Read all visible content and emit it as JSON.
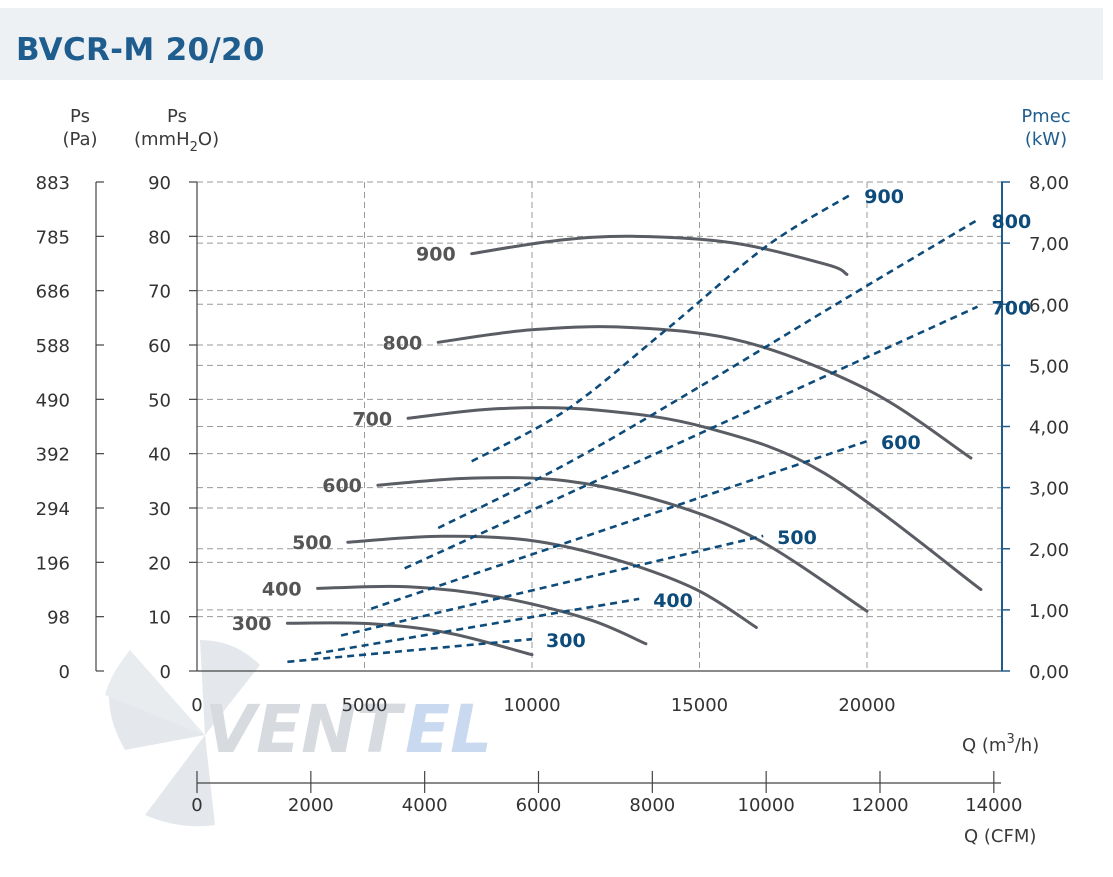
{
  "header": {
    "title": "BVCR-M 20/20"
  },
  "watermark": {
    "brand_a": "VENT",
    "brand_b": "EL"
  },
  "chart_data": {
    "type": "line",
    "title": "BVCR-M 20/20",
    "x_axis": {
      "label": "Q (m3/h)",
      "label_main": "Q (m",
      "label_sup": "3",
      "label_end": "/h)",
      "range": [
        0,
        24000
      ],
      "ticks": [
        0,
        5000,
        10000,
        15000,
        20000
      ]
    },
    "x_axis_secondary": {
      "label": "Q (CFM)",
      "range": [
        0,
        14126
      ],
      "ticks": [
        0,
        2000,
        4000,
        6000,
        8000,
        10000,
        12000,
        14000
      ]
    },
    "y_axis_mmH2O": {
      "label": "Ps",
      "unit_a": "(mmH",
      "unit_sub": "2",
      "unit_b": "O)",
      "range": [
        0,
        90
      ],
      "ticks": [
        0,
        10,
        20,
        30,
        40,
        50,
        60,
        70,
        80,
        90
      ]
    },
    "y_axis_Pa": {
      "label": "Ps",
      "unit": "(Pa)",
      "ticks": [
        "0",
        "98",
        "196",
        "294",
        "392",
        "490",
        "588",
        "686",
        "785",
        "883"
      ]
    },
    "y_axis_power": {
      "label": "Pmec",
      "unit": "(kW)",
      "range": [
        0,
        8
      ],
      "ticks": [
        "0,00",
        "1,00",
        "2,00",
        "3,00",
        "4,00",
        "5,00",
        "6,00",
        "7,00",
        "8,00"
      ]
    },
    "pressure_series": [
      {
        "name": "300",
        "x": [
          2700,
          5200,
          7500,
          10000
        ],
        "y": [
          8.8,
          8.7,
          7.0,
          3.0
        ]
      },
      {
        "name": "400",
        "x": [
          3600,
          6300,
          9000,
          11700,
          13400
        ],
        "y": [
          15.2,
          15.5,
          13.6,
          9.5,
          5.0
        ]
      },
      {
        "name": "500",
        "x": [
          4500,
          7300,
          10000,
          12500,
          14900,
          16700
        ],
        "y": [
          23.7,
          24.8,
          24.0,
          20.5,
          15.0,
          8.0
        ]
      },
      {
        "name": "600",
        "x": [
          5400,
          8200,
          11000,
          14000,
          16800,
          20000
        ],
        "y": [
          34.2,
          35.5,
          35.0,
          31.0,
          24.0,
          11.0
        ]
      },
      {
        "name": "700",
        "x": [
          6300,
          9000,
          12000,
          15200,
          18700,
          23400
        ],
        "y": [
          46.5,
          48.3,
          48.0,
          44.8,
          36.5,
          15.0
        ]
      },
      {
        "name": "800",
        "x": [
          7200,
          10000,
          13000,
          16400,
          20100,
          23100
        ],
        "y": [
          60.5,
          62.8,
          63.2,
          60.5,
          51.5,
          39.2
        ]
      },
      {
        "name": "900",
        "x": [
          8200,
          10700,
          13000,
          16000,
          18800,
          19400
        ],
        "y": [
          76.8,
          79.2,
          80.0,
          78.8,
          74.8,
          73.0
        ]
      }
    ],
    "power_series": [
      {
        "name": "300",
        "x": [
          2700,
          10000
        ],
        "y": [
          0.15,
          0.52
        ]
      },
      {
        "name": "400",
        "x": [
          3500,
          13200
        ],
        "y": [
          0.28,
          1.18
        ]
      },
      {
        "name": "500",
        "x": [
          4300,
          16900
        ],
        "y": [
          0.58,
          2.21
        ]
      },
      {
        "name": "600",
        "x": [
          5200,
          20000
        ],
        "y": [
          1.02,
          3.76
        ]
      },
      {
        "name": "700",
        "x": [
          6200,
          23300
        ],
        "y": [
          1.68,
          5.96
        ]
      },
      {
        "name": "800",
        "x": [
          7200,
          11000,
          15000,
          19500,
          23300
        ],
        "y": [
          2.34,
          3.38,
          4.65,
          6.14,
          7.38
        ]
      },
      {
        "name": "900",
        "x": [
          8200,
          11000,
          14000,
          17000,
          19500
        ],
        "y": [
          3.43,
          4.26,
          5.58,
          6.95,
          7.79
        ]
      }
    ]
  }
}
